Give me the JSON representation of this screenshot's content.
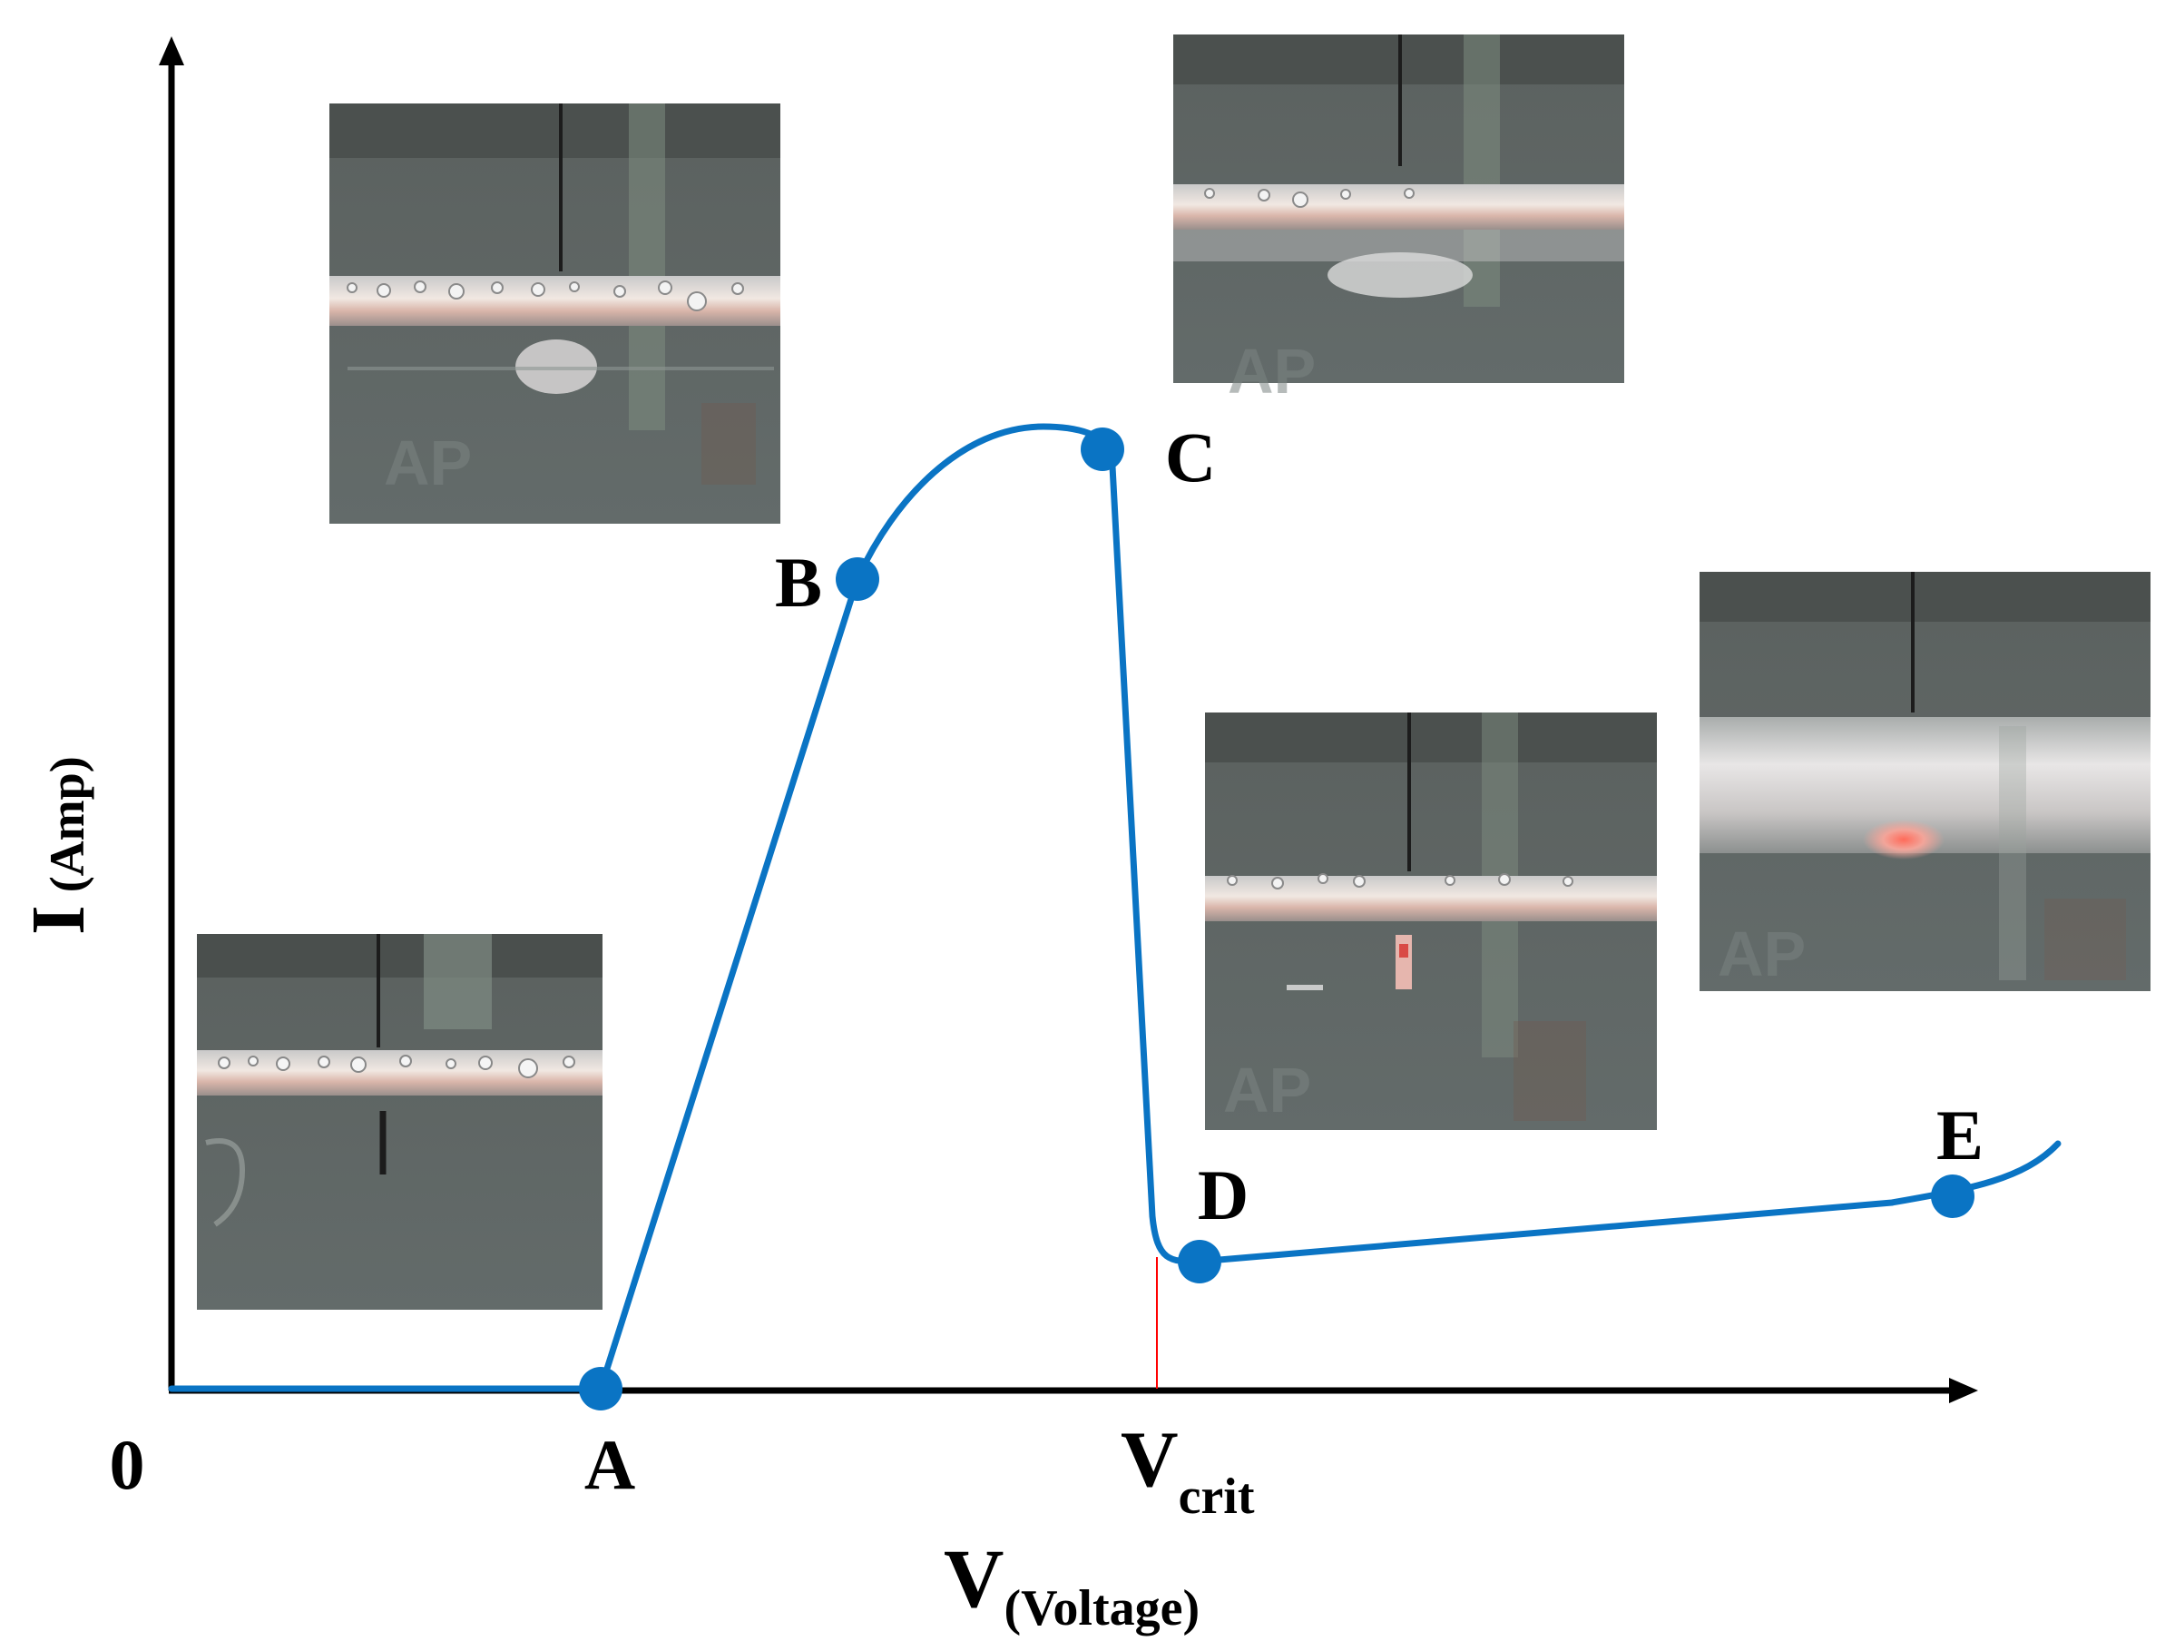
{
  "axes": {
    "y_label_main": "I",
    "y_label_sub": "(Amp)",
    "x_label_main": "V",
    "x_label_sub": "(Voltage)",
    "origin_label": "0",
    "vcrit_main": "V",
    "vcrit_sub": "crit"
  },
  "points": {
    "a": "A",
    "b": "B",
    "c": "C",
    "d": "D",
    "e": "E"
  },
  "colors": {
    "curve": "#0a74c4",
    "axes": "#000000",
    "marker_line": "#ff0000"
  },
  "insets": [
    {
      "name": "photo-stage-a",
      "depicts": "electrode-with-small-bubbles"
    },
    {
      "name": "photo-stage-b",
      "depicts": "electrode-with-bubble-film"
    },
    {
      "name": "photo-stage-c",
      "depicts": "electrode-with-vapor-layer"
    },
    {
      "name": "photo-stage-d",
      "depicts": "electrode-with-red-spark"
    },
    {
      "name": "photo-stage-e",
      "depicts": "electrode-with-glow-discharge"
    }
  ]
}
